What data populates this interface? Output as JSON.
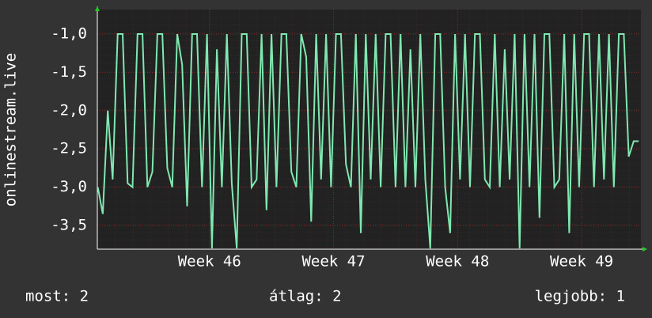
{
  "chart_data": {
    "type": "line",
    "y_label": "onlinestream.live",
    "xlim": [
      45.096,
      49.478
    ],
    "ylim": [
      -3.81,
      -0.68
    ],
    "xticks": [
      {
        "value": 46,
        "label": "Week 46"
      },
      {
        "value": 47,
        "label": "Week 47"
      },
      {
        "value": 48,
        "label": "Week 48"
      },
      {
        "value": 49,
        "label": "Week 49"
      }
    ],
    "yticks": [
      {
        "value": -1,
        "label": "-1,0"
      },
      {
        "value": -1.5,
        "label": "-1,5"
      },
      {
        "value": -2,
        "label": "-2,0"
      },
      {
        "value": -2.5,
        "label": "-2,5"
      },
      {
        "value": -3,
        "label": "-3,0"
      },
      {
        "value": -3.5,
        "label": "-3,5"
      }
    ],
    "grid": true,
    "x": [
      45.1,
      45.14,
      45.18,
      45.22,
      45.26,
      45.3,
      45.34,
      45.38,
      45.42,
      45.46,
      45.5,
      45.54,
      45.58,
      45.62,
      45.66,
      45.7,
      45.74,
      45.78,
      45.82,
      45.86,
      45.9,
      45.94,
      45.98,
      46.02,
      46.06,
      46.1,
      46.14,
      46.18,
      46.22,
      46.26,
      46.3,
      46.34,
      46.38,
      46.42,
      46.46,
      46.5,
      46.54,
      46.58,
      46.62,
      46.66,
      46.7,
      46.74,
      46.78,
      46.82,
      46.86,
      46.9,
      46.94,
      46.98,
      47.02,
      47.06,
      47.1,
      47.14,
      47.18,
      47.22,
      47.26,
      47.3,
      47.34,
      47.38,
      47.42,
      47.46,
      47.5,
      47.54,
      47.58,
      47.62,
      47.66,
      47.7,
      47.74,
      47.78,
      47.82,
      47.86,
      47.9,
      47.94,
      47.98,
      48.02,
      48.06,
      48.1,
      48.14,
      48.18,
      48.22,
      48.26,
      48.3,
      48.34,
      48.38,
      48.42,
      48.46,
      48.5,
      48.54,
      48.58,
      48.62,
      48.66,
      48.7,
      48.74,
      48.78,
      48.82,
      48.86,
      48.9,
      48.94,
      48.98,
      49.02,
      49.06,
      49.1,
      49.14,
      49.18,
      49.22,
      49.26,
      49.3,
      49.34,
      49.38,
      49.42,
      49.46
    ],
    "series": [
      {
        "color": "#7fe8b0",
        "values": [
          -3.0,
          -3.35,
          -2.0,
          -2.9,
          -1.0,
          -1.0,
          -2.95,
          -3.0,
          -1.0,
          -1.0,
          -3.0,
          -2.8,
          -1.0,
          -1.0,
          -2.75,
          -3.0,
          -1.0,
          -1.4,
          -3.25,
          -1.0,
          -1.0,
          -3.0,
          -1.0,
          -3.8,
          -1.2,
          -3.0,
          -1.0,
          -2.95,
          -3.8,
          -1.0,
          -1.0,
          -3.0,
          -2.9,
          -1.0,
          -3.3,
          -1.0,
          -3.0,
          -1.0,
          -1.0,
          -2.8,
          -3.0,
          -1.0,
          -1.3,
          -3.45,
          -1.0,
          -2.9,
          -1.0,
          -3.0,
          -1.0,
          -1.0,
          -2.7,
          -3.0,
          -1.0,
          -3.6,
          -1.0,
          -2.9,
          -1.0,
          -3.0,
          -1.0,
          -1.0,
          -3.0,
          -1.0,
          -3.0,
          -1.2,
          -3.0,
          -1.0,
          -2.9,
          -3.8,
          -1.0,
          -1.0,
          -3.0,
          -3.6,
          -1.0,
          -2.9,
          -1.0,
          -3.0,
          -1.0,
          -1.0,
          -2.9,
          -3.0,
          -1.0,
          -3.0,
          -1.2,
          -2.9,
          -1.0,
          -3.8,
          -1.0,
          -3.0,
          -1.0,
          -3.4,
          -1.0,
          -1.0,
          -3.0,
          -2.9,
          -1.0,
          -3.6,
          -1.0,
          -3.0,
          -1.0,
          -1.0,
          -3.0,
          -1.0,
          -2.9,
          -1.0,
          -3.0,
          -1.0,
          -1.0,
          -2.6,
          -2.4,
          -2.4
        ]
      }
    ],
    "footer": {
      "current": "most: 2",
      "average": "átlag: 2",
      "best": "legjobb: 1"
    }
  }
}
